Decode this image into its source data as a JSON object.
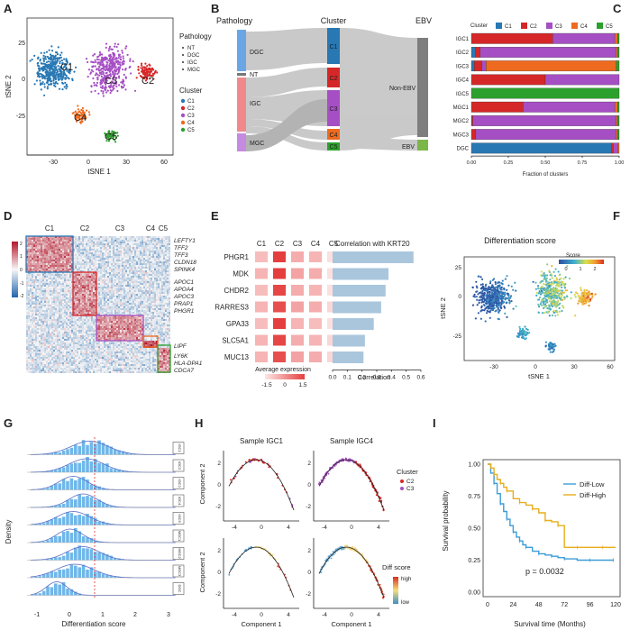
{
  "panels": [
    {
      "letter": "A"
    },
    {
      "letter": "B"
    },
    {
      "letter": "C"
    },
    {
      "letter": "D"
    },
    {
      "letter": "E"
    },
    {
      "letter": "F"
    },
    {
      "letter": "G"
    },
    {
      "letter": "H"
    },
    {
      "letter": "I"
    }
  ],
  "cluster_colors": {
    "C1": "#2878b4",
    "C2": "#d62728",
    "C3": "#a64fc4",
    "C4": "#ee6a1f",
    "C5": "#2ca02c"
  },
  "panelA": {
    "x_label": "tSNE 1",
    "y_label": "tSNE 2",
    "x_ticks": [
      "-30",
      "0",
      "30",
      "60"
    ],
    "y_ticks": [
      "25",
      "0",
      "-25"
    ],
    "pathology_title": "Pathology",
    "pathology_items": [
      "NT",
      "DGC",
      "IGC",
      "MGC"
    ],
    "cluster_title": "Cluster",
    "cluster_items": [
      "C1",
      "C2",
      "C3",
      "C4",
      "C5"
    ]
  },
  "panelB": {
    "col_titles": [
      "Pathology",
      "Cluster",
      "EBV"
    ],
    "pathology": [
      "DGC",
      "NT",
      "IGC",
      "MGC"
    ],
    "clusters": [
      "C1",
      "C2",
      "C3",
      "C4",
      "C5"
    ],
    "ebv": [
      "Non-EBV",
      "EBV"
    ]
  },
  "panelC": {
    "legend_title": "Cluster",
    "xlabel": "Fraction of clusters",
    "x_ticks": [
      "0.00",
      "0.25",
      "0.50",
      "0.75",
      "1.00"
    ],
    "chart_data": {
      "type": "bar",
      "orientation": "horizontal-stacked",
      "categories": [
        "IGC1",
        "IGC2",
        "IGC3",
        "IGC4",
        "IGC5",
        "MGC1",
        "MGC2",
        "MGC3",
        "DGC"
      ],
      "series": [
        {
          "name": "C1",
          "values": [
            0.0,
            0.03,
            0.02,
            0.0,
            0.0,
            0.0,
            0.0,
            0.0,
            0.95
          ]
        },
        {
          "name": "C2",
          "values": [
            0.55,
            0.03,
            0.05,
            0.5,
            0.0,
            0.35,
            0.01,
            0.03,
            0.01
          ]
        },
        {
          "name": "C3",
          "values": [
            0.42,
            0.92,
            0.03,
            0.5,
            0.0,
            0.62,
            0.97,
            0.95,
            0.03
          ]
        },
        {
          "name": "C4",
          "values": [
            0.02,
            0.01,
            0.88,
            0.0,
            0.0,
            0.02,
            0.01,
            0.01,
            0.01
          ]
        },
        {
          "name": "C5",
          "values": [
            0.01,
            0.01,
            0.02,
            0.0,
            1.0,
            0.01,
            0.01,
            0.01,
            0.0
          ]
        }
      ],
      "xlim": [
        0,
        1
      ]
    }
  },
  "panelD": {
    "clusters": [
      "C1",
      "C2",
      "C3",
      "C4",
      "C5"
    ],
    "genes_c1": [
      "LEFTY1",
      "TFF2",
      "TFF3",
      "CLDN18",
      "SPINK4"
    ],
    "genes_c2": [
      "APOC1",
      "APOA4",
      "APOC3",
      "PRAP1",
      "PHGR1"
    ],
    "gene_c3": "LIPF",
    "genes_c5": [
      "LY6K",
      "HLA-DPA1",
      "CDCA7"
    ],
    "scale_ticks": [
      "2",
      "1",
      "0",
      "-1",
      "-2"
    ]
  },
  "panelE": {
    "clusters": [
      "C1",
      "C2",
      "C3",
      "C4",
      "C5"
    ],
    "corr_title": "Correlation with KRT20",
    "avg_expr_label": "Average expression",
    "avg_ticks": [
      "-1.5",
      "0",
      "1.5"
    ],
    "corr_xlabel": "Correlation",
    "corr_ticks": [
      "0.0",
      "0.1",
      "0.2",
      "0.3",
      "0.4",
      "0.5",
      "0.6"
    ],
    "chart_data": {
      "type": "bar",
      "orientation": "horizontal",
      "categories": [
        "PHGR1",
        "MDK",
        "CHDR2",
        "RARRES3",
        "GPA33",
        "SLC5A1",
        "MUC13"
      ],
      "values": [
        0.55,
        0.38,
        0.36,
        0.33,
        0.28,
        0.22,
        0.21
      ],
      "xlim": [
        0,
        0.6
      ],
      "heat": [
        [
          0.25,
          1.0,
          0.35,
          0.3,
          0.05
        ],
        [
          0.3,
          1.0,
          0.4,
          0.35,
          0.05
        ],
        [
          0.25,
          0.95,
          0.35,
          0.3,
          0.05
        ],
        [
          0.3,
          0.9,
          0.4,
          0.35,
          0.1
        ],
        [
          0.25,
          1.0,
          0.3,
          0.25,
          0.05
        ],
        [
          0.3,
          0.95,
          0.35,
          0.3,
          0.1
        ],
        [
          0.3,
          0.9,
          0.4,
          0.35,
          0.1
        ]
      ]
    }
  },
  "panelF": {
    "title": "Differentiation score",
    "legend_title": "Score",
    "legend_ticks": [
      "0",
      "1",
      "2"
    ],
    "x_label": "tSNE 1",
    "y_label": "tSNE 2",
    "x_ticks": [
      "-30",
      "0",
      "30",
      "60"
    ],
    "y_ticks": [
      "25",
      "0",
      "-25"
    ]
  },
  "panelG": {
    "y_label": "Density",
    "x_label": "Differentiation score",
    "x_ticks": [
      "-1",
      "0",
      "1",
      "2",
      "3"
    ],
    "samples": [
      "DGC",
      "MGC3",
      "MGC2",
      "MGC1",
      "IGC5",
      "IGC4",
      "IGC3",
      "IGC2",
      "IGC1"
    ]
  },
  "panelH": {
    "title_left": "Sample IGC1",
    "title_right": "Sample IGC4",
    "y_label": "Component 2",
    "x_label": "Component 1",
    "x_ticks": [
      "-4",
      "0",
      "4"
    ],
    "y_ticks": [
      "2",
      "0",
      "-2"
    ],
    "cluster_title": "Cluster",
    "cluster_items": [
      "C2",
      "C3"
    ],
    "score_title": "Diff score",
    "score_high": "high",
    "score_low": "low"
  },
  "panelI": {
    "y_label": "Survival probability",
    "x_label": "Survival time (Months)",
    "x_ticks": [
      "0",
      "24",
      "48",
      "72",
      "96",
      "120"
    ],
    "y_ticks": [
      "1.00",
      "0.75",
      "0.50",
      "0.25",
      "0.00"
    ],
    "legend": [
      "Diff-Low",
      "Diff-High"
    ],
    "pvalue": "p = 0.0032",
    "chart_data": {
      "type": "line",
      "xlim": [
        0,
        120
      ],
      "ylim": [
        0,
        1
      ],
      "series": [
        {
          "name": "Diff-Low",
          "color": "#3c9cd7",
          "x": [
            0,
            3,
            6,
            9,
            12,
            15,
            18,
            21,
            24,
            27,
            30,
            33,
            36,
            42,
            48,
            54,
            60,
            66,
            72,
            84,
            96,
            108,
            118
          ],
          "y": [
            1.0,
            0.93,
            0.85,
            0.77,
            0.69,
            0.63,
            0.57,
            0.52,
            0.47,
            0.43,
            0.4,
            0.37,
            0.35,
            0.32,
            0.3,
            0.29,
            0.28,
            0.27,
            0.26,
            0.25,
            0.25,
            0.25,
            0.25
          ]
        },
        {
          "name": "Diff-High",
          "color": "#e6ae1b",
          "x": [
            0,
            3,
            6,
            9,
            12,
            15,
            18,
            24,
            30,
            36,
            42,
            48,
            54,
            60,
            66,
            72,
            84,
            96,
            108,
            120
          ],
          "y": [
            1.0,
            0.97,
            0.92,
            0.88,
            0.85,
            0.82,
            0.79,
            0.73,
            0.7,
            0.68,
            0.65,
            0.62,
            0.56,
            0.55,
            0.52,
            0.35,
            0.35,
            0.35,
            0.35,
            0.35
          ]
        }
      ]
    }
  }
}
